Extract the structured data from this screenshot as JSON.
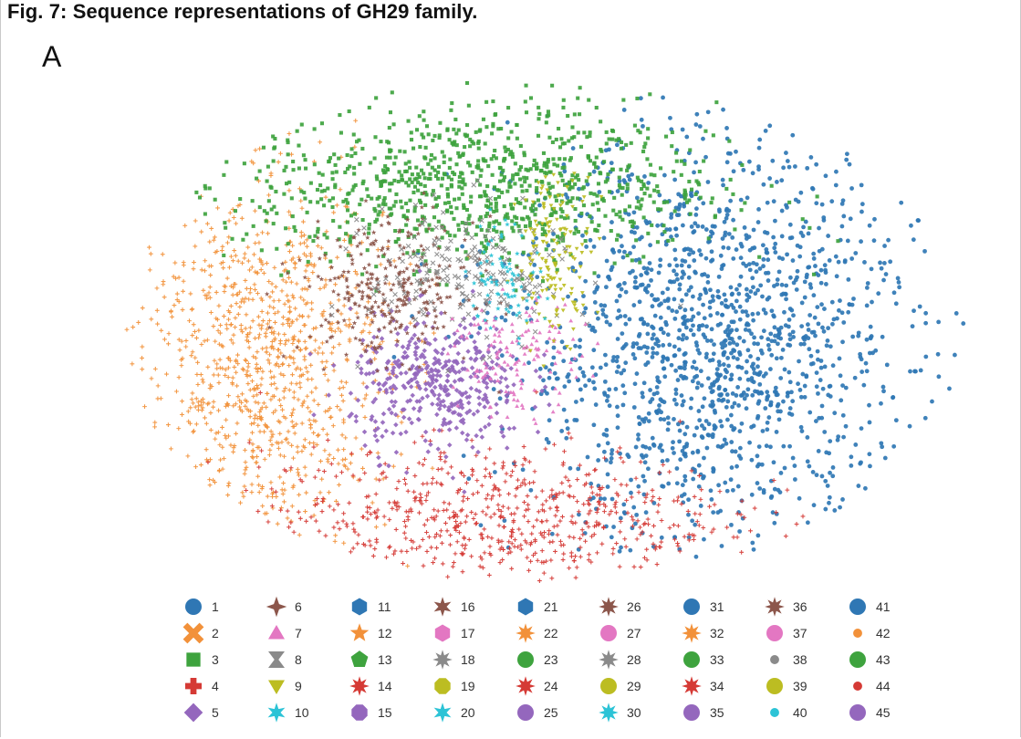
{
  "figure": {
    "title": "Fig. 7: Sequence representations of GH29 family.",
    "panel_label": "A"
  },
  "palette": {
    "blue": "#2f77b4",
    "orange": "#f2913a",
    "green": "#3ea33e",
    "red": "#d53a35",
    "purple": "#9467bd",
    "brown": "#8c564b",
    "pink": "#e377c2",
    "gray": "#8a8a8a",
    "olive": "#bcbd22",
    "cyan": "#2cc3d6"
  },
  "chart_data": {
    "type": "scatter",
    "title": "Fig. 7: Sequence representations of GH29 family.",
    "panel": "A",
    "xlabel": "",
    "ylabel": "",
    "axes_visible": false,
    "grid": false,
    "legend_placement": "bottom",
    "legend_columns": 9,
    "legend_rows": 5,
    "clusters": [
      {
        "id": "blue",
        "color": "#2f77b4",
        "center": [
          28,
          0
        ],
        "spread": [
          16,
          15
        ],
        "size": 1500,
        "marker": "circle"
      },
      {
        "id": "orange",
        "color": "#f2913a",
        "center": [
          -45,
          -3
        ],
        "spread": [
          10,
          13
        ],
        "size": 950,
        "marker": "cross"
      },
      {
        "id": "green",
        "color": "#3ea33e",
        "center": [
          -10,
          23
        ],
        "spread": [
          19,
          6
        ],
        "size": 950,
        "marker": "square"
      },
      {
        "id": "red",
        "color": "#d53a35",
        "center": [
          -8,
          -25
        ],
        "spread": [
          19,
          5
        ],
        "size": 650,
        "marker": "plus"
      },
      {
        "id": "purple",
        "color": "#9467bd",
        "center": [
          -17,
          -6
        ],
        "spread": [
          7,
          5
        ],
        "size": 420,
        "marker": "diamond"
      },
      {
        "id": "brown",
        "color": "#8c564b",
        "center": [
          -25,
          8
        ],
        "spread": [
          7,
          5
        ],
        "size": 300,
        "marker": "star"
      },
      {
        "id": "gray",
        "color": "#8a8a8a",
        "center": [
          -12,
          10
        ],
        "spread": [
          8,
          5
        ],
        "size": 200,
        "marker": "x"
      },
      {
        "id": "pink",
        "color": "#e377c2",
        "center": [
          -4,
          -2
        ],
        "spread": [
          5,
          4
        ],
        "size": 140,
        "marker": "triangle"
      },
      {
        "id": "olive",
        "color": "#bcbd22",
        "center": [
          2,
          13
        ],
        "spread": [
          3,
          6
        ],
        "size": 150,
        "marker": "triangle-down"
      },
      {
        "id": "cyan",
        "color": "#2cc3d6",
        "center": [
          -6,
          10
        ],
        "spread": [
          3,
          4
        ],
        "size": 80,
        "marker": "star"
      }
    ]
  },
  "legend": {
    "items": [
      {
        "label": "1",
        "color": "#2f77b4",
        "marker": "circle"
      },
      {
        "label": "2",
        "color": "#f2913a",
        "marker": "x-bold"
      },
      {
        "label": "3",
        "color": "#3ea33e",
        "marker": "square"
      },
      {
        "label": "4",
        "color": "#d53a35",
        "marker": "plus-bold"
      },
      {
        "label": "5",
        "color": "#9467bd",
        "marker": "diamond"
      },
      {
        "label": "6",
        "color": "#8c564b",
        "marker": "star4"
      },
      {
        "label": "7",
        "color": "#e377c2",
        "marker": "triangle"
      },
      {
        "label": "8",
        "color": "#8a8a8a",
        "marker": "hourglass"
      },
      {
        "label": "9",
        "color": "#bcbd22",
        "marker": "triangle-down"
      },
      {
        "label": "10",
        "color": "#2cc3d6",
        "marker": "star6"
      },
      {
        "label": "11",
        "color": "#2f77b4",
        "marker": "hexagon"
      },
      {
        "label": "12",
        "color": "#f2913a",
        "marker": "star5"
      },
      {
        "label": "13",
        "color": "#3ea33e",
        "marker": "pentagon"
      },
      {
        "label": "14",
        "color": "#d53a35",
        "marker": "star8"
      },
      {
        "label": "15",
        "color": "#9467bd",
        "marker": "octagon"
      },
      {
        "label": "16",
        "color": "#8c564b",
        "marker": "star6"
      },
      {
        "label": "17",
        "color": "#e377c2",
        "marker": "hexagon"
      },
      {
        "label": "18",
        "color": "#8a8a8a",
        "marker": "star8"
      },
      {
        "label": "19",
        "color": "#bcbd22",
        "marker": "octagon"
      },
      {
        "label": "20",
        "color": "#2cc3d6",
        "marker": "star6"
      },
      {
        "label": "21",
        "color": "#2f77b4",
        "marker": "hexagon"
      },
      {
        "label": "22",
        "color": "#f2913a",
        "marker": "star8"
      },
      {
        "label": "23",
        "color": "#3ea33e",
        "marker": "circle"
      },
      {
        "label": "24",
        "color": "#d53a35",
        "marker": "star8"
      },
      {
        "label": "25",
        "color": "#9467bd",
        "marker": "circle"
      },
      {
        "label": "26",
        "color": "#8c564b",
        "marker": "star8"
      },
      {
        "label": "27",
        "color": "#e377c2",
        "marker": "circle"
      },
      {
        "label": "28",
        "color": "#8a8a8a",
        "marker": "star8"
      },
      {
        "label": "29",
        "color": "#bcbd22",
        "marker": "circle"
      },
      {
        "label": "30",
        "color": "#2cc3d6",
        "marker": "star8"
      },
      {
        "label": "31",
        "color": "#2f77b4",
        "marker": "circle"
      },
      {
        "label": "32",
        "color": "#f2913a",
        "marker": "star8"
      },
      {
        "label": "33",
        "color": "#3ea33e",
        "marker": "circle"
      },
      {
        "label": "34",
        "color": "#d53a35",
        "marker": "star8"
      },
      {
        "label": "35",
        "color": "#9467bd",
        "marker": "circle"
      },
      {
        "label": "36",
        "color": "#8c564b",
        "marker": "star8"
      },
      {
        "label": "37",
        "color": "#e377c2",
        "marker": "circle"
      },
      {
        "label": "38",
        "color": "#8a8a8a",
        "marker": "dot"
      },
      {
        "label": "39",
        "color": "#bcbd22",
        "marker": "circle"
      },
      {
        "label": "40",
        "color": "#2cc3d6",
        "marker": "dot"
      },
      {
        "label": "41",
        "color": "#2f77b4",
        "marker": "circle"
      },
      {
        "label": "42",
        "color": "#f2913a",
        "marker": "dot"
      },
      {
        "label": "43",
        "color": "#3ea33e",
        "marker": "circle"
      },
      {
        "label": "44",
        "color": "#d53a35",
        "marker": "dot"
      },
      {
        "label": "45",
        "color": "#9467bd",
        "marker": "circle"
      }
    ]
  }
}
